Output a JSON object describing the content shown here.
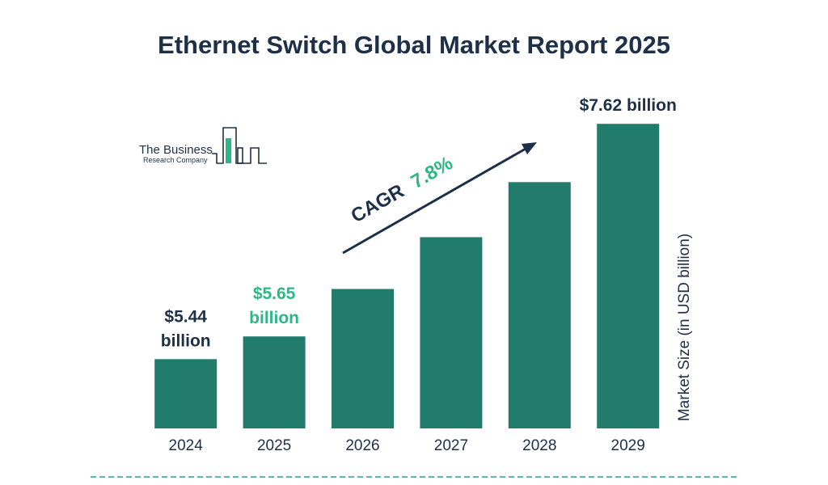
{
  "chart_data": {
    "type": "bar",
    "title": "Ethernet Switch Global Market Report 2025",
    "categories": [
      "2024",
      "2025",
      "2026",
      "2027",
      "2028",
      "2029"
    ],
    "values": [
      5.44,
      5.65,
      6.09,
      6.57,
      7.08,
      7.62
    ],
    "value_labels": [
      [
        "$5.44",
        "billion"
      ],
      [
        "$5.65",
        "billion"
      ],
      null,
      null,
      null,
      [
        "$7.62 billion"
      ]
    ],
    "xlabel": "",
    "ylabel": "Market Size (in USD billion)",
    "grid": false,
    "legend": "none",
    "cagr": {
      "label": "CAGR",
      "value": "7.8%"
    },
    "colors": {
      "bar": "#217c6b",
      "text_dark": "#1e3047",
      "accent": "#2db883",
      "divider": "#2a9d8f"
    }
  },
  "logo": {
    "line1": "The Business",
    "line2": "Research Company"
  }
}
